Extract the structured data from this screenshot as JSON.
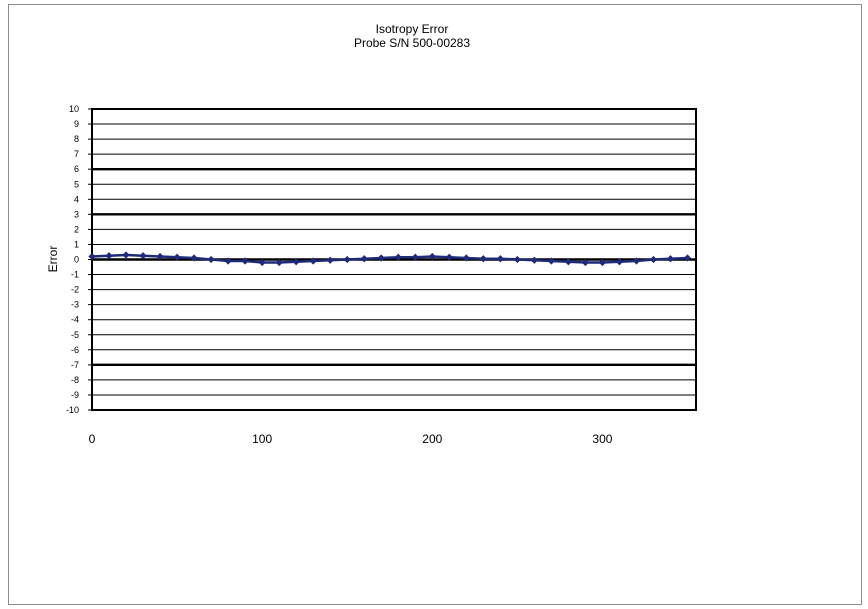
{
  "chart_data": {
    "type": "line",
    "title": "Isotropy Error",
    "subtitle": "Probe S/N 500-00283",
    "xlabel": "",
    "ylabel": "Error",
    "xlim": [
      0,
      355
    ],
    "ylim": [
      -10,
      10
    ],
    "x_ticks": [
      0,
      100,
      200,
      300
    ],
    "y_ticks": [
      10,
      9,
      8,
      7,
      6,
      5,
      4,
      3,
      2,
      1,
      0,
      -1,
      -2,
      -3,
      -4,
      -5,
      -6,
      -7,
      -8,
      -9,
      -10
    ],
    "bold_gridlines": [
      6,
      3,
      0,
      -7
    ],
    "grid": true,
    "legend": "none",
    "series": [
      {
        "color": "#1f2a78",
        "x": [
          0,
          10,
          20,
          30,
          40,
          50,
          60,
          70,
          80,
          90,
          100,
          110,
          120,
          130,
          140,
          150,
          160,
          170,
          180,
          190,
          200,
          210,
          220,
          230,
          240,
          250,
          260,
          270,
          280,
          290,
          300,
          310,
          320,
          330,
          340,
          350
        ],
        "y": [
          0.2,
          0.25,
          0.3,
          0.25,
          0.2,
          0.15,
          0.1,
          0.0,
          -0.1,
          -0.1,
          -0.2,
          -0.2,
          -0.15,
          -0.1,
          -0.05,
          0.0,
          0.05,
          0.1,
          0.15,
          0.15,
          0.2,
          0.15,
          0.1,
          0.05,
          0.05,
          0.0,
          -0.05,
          -0.1,
          -0.15,
          -0.2,
          -0.2,
          -0.15,
          -0.1,
          0.0,
          0.05,
          0.1
        ]
      }
    ]
  }
}
